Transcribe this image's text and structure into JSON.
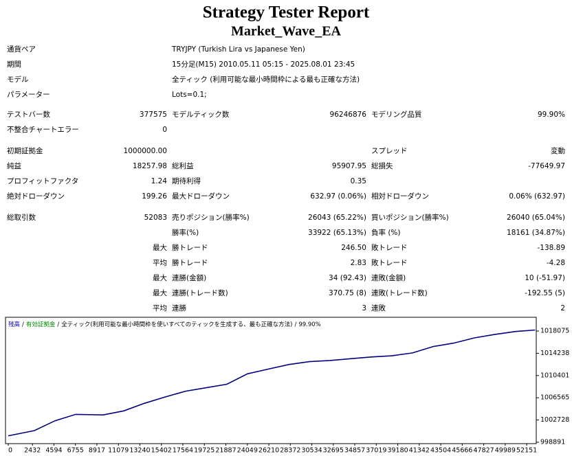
{
  "header": {
    "title": "Strategy Tester Report",
    "subtitle": "Market_Wave_EA"
  },
  "table": {
    "rows": [
      [
        "通貨ペア",
        null,
        "TRYJPY (Turkish Lira vs Japanese Yen)",
        null,
        null,
        null
      ],
      [
        "期間",
        null,
        "15分足(M15) 2010.05.11 05:15 - 2025.08.01 23:45",
        null,
        null,
        null
      ],
      [
        "モデル",
        null,
        "全ティック (利用可能な最小時間枠による最も正確な方法)",
        null,
        null,
        null
      ],
      [
        "パラメーター",
        null,
        "Lots=0.1;",
        null,
        null,
        null
      ],
      [
        "テストバー数",
        "377575",
        "モデルティック数",
        "96246876",
        "モデリング品質",
        "99.90%"
      ],
      [
        "不整合チャートエラー",
        "0",
        null,
        null,
        null,
        null
      ],
      [
        "初期証拠金",
        "1000000.00",
        null,
        null,
        "スプレッド",
        "変動"
      ],
      [
        "純益",
        "18257.98",
        "総利益",
        "95907.95",
        "総損失",
        "-77649.97"
      ],
      [
        "プロフィットファクタ",
        "1.24",
        "期待利得",
        "0.35",
        null,
        null
      ],
      [
        "絶対ドローダウン",
        "199.26",
        "最大ドローダウン",
        "632.97 (0.06%)",
        "相対ドローダウン",
        "0.06% (632.97)"
      ],
      [
        "総取引数",
        "52083",
        "売りポジション(勝率%)",
        "26043 (65.22%)",
        "買いポジション(勝率%)",
        "26040 (65.04%)"
      ],
      [
        null,
        null,
        "勝率(%)",
        "33922 (65.13%)",
        "負率 (%)",
        "18161 (34.87%)"
      ],
      [
        null,
        "最大",
        "勝トレード",
        "246.50",
        "敗トレード",
        "-138.89"
      ],
      [
        null,
        "平均",
        "勝トレード",
        "2.83",
        "敗トレード",
        "-4.28"
      ],
      [
        null,
        "最大",
        "連勝(金額)",
        "34 (92.43)",
        "連敗(金額)",
        "10 (-51.97)"
      ],
      [
        null,
        "最大",
        "連勝(トレード数)",
        "370.75 (8)",
        "連敗(トレード数)",
        "-192.55 (5)"
      ],
      [
        null,
        "平均",
        "連勝",
        "3",
        "連敗",
        "2"
      ]
    ]
  },
  "chart_data": {
    "type": "line",
    "legend": [
      {
        "text": "残高",
        "color": "#0000cc"
      },
      {
        "text": "有効証拠金",
        "color": "#008000"
      },
      {
        "text": "全ティック(利用可能な最小時間枠を使いすべてのティックを生成する、最も正確な方法)",
        "color": "#000000"
      },
      {
        "text": "99.90%",
        "color": "#000000"
      }
    ],
    "separator": "/",
    "x": [
      0,
      2628,
      4703,
      6777,
      9544,
      11618,
      13693,
      15768,
      17842,
      19917,
      21992,
      24066,
      26141,
      28216,
      30290,
      32365,
      34440,
      36515,
      38589,
      40664,
      42739,
      44813,
      46888,
      48963,
      51037,
      53000
    ],
    "series": [
      {
        "color": "#000080",
        "values": [
          1000000,
          1000900,
          1002600,
          1003700,
          1003600,
          1004300,
          1005600,
          1006700,
          1007700,
          1008300,
          1008900,
          1010700,
          1011500,
          1012300,
          1012800,
          1013000,
          1013300,
          1013600,
          1013800,
          1014300,
          1015400,
          1016000,
          1016900,
          1017500,
          1018000,
          1018258
        ]
      }
    ],
    "xlim": [
      -140,
      53110
    ],
    "xticks": [
      0,
      2432,
      4594,
      6755,
      8917,
      11079,
      13240,
      15402,
      17564,
      19725,
      21887,
      24049,
      26210,
      28372,
      30534,
      32695,
      34857,
      37019,
      39180,
      41342,
      43504,
      45666,
      47827,
      49989,
      52151
    ],
    "ylim": [
      998650,
      1020450
    ],
    "yticks": [
      998891,
      1002728,
      1006565,
      1010401,
      1014238,
      1018075
    ],
    "grid": false
  }
}
